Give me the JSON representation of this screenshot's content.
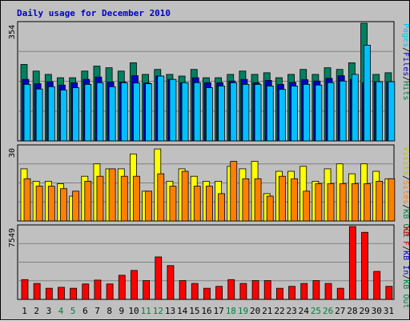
{
  "chart_data": [
    {
      "type": "bar",
      "title": "Daily usage for December 2010",
      "panel": "top",
      "ymax_label": "354",
      "right_axis_labels": [
        {
          "text": "Pages",
          "color": "#00c0ff"
        },
        {
          "text": "/",
          "color": "#000000"
        },
        {
          "text": "Files",
          "color": "#0000c0"
        },
        {
          "text": "/",
          "color": "#000000"
        },
        {
          "text": "Hits",
          "color": "#008040"
        }
      ],
      "categories": [
        "1",
        "2",
        "3",
        "4",
        "5",
        "6",
        "7",
        "8",
        "9",
        "10",
        "11",
        "12",
        "13",
        "14",
        "15",
        "16",
        "17",
        "18",
        "19",
        "20",
        "21",
        "22",
        "23",
        "24",
        "25",
        "26",
        "27",
        "28",
        "29",
        "30",
        "31"
      ],
      "weekend_days": [
        "4",
        "5",
        "11",
        "12",
        "18",
        "19",
        "25",
        "26"
      ],
      "ylim": [
        0,
        354
      ],
      "series": [
        {
          "name": "Hits",
          "color": "#008060",
          "values": [
            230,
            210,
            200,
            190,
            190,
            210,
            225,
            220,
            210,
            235,
            200,
            215,
            200,
            195,
            215,
            190,
            190,
            200,
            210,
            200,
            205,
            190,
            200,
            215,
            200,
            220,
            215,
            235,
            354,
            200,
            205
          ]
        },
        {
          "name": "Files",
          "color": "#0000c8",
          "values": [
            185,
            172,
            178,
            168,
            175,
            185,
            192,
            177,
            177,
            196,
            174,
            195,
            185,
            175,
            190,
            175,
            175,
            180,
            185,
            175,
            182,
            170,
            176,
            184,
            180,
            188,
            196,
            185,
            175,
            178,
            178
          ]
        },
        {
          "name": "Pages",
          "color": "#00c0ff",
          "values": [
            170,
            156,
            163,
            153,
            160,
            170,
            175,
            163,
            175,
            174,
            172,
            195,
            185,
            175,
            175,
            160,
            165,
            175,
            170,
            170,
            165,
            155,
            165,
            170,
            168,
            175,
            180,
            200,
            288,
            178,
            178
          ]
        }
      ]
    },
    {
      "type": "bar",
      "panel": "middle",
      "ymax_label": "30",
      "right_axis_labels": [
        {
          "text": "Visits",
          "color": "#c0c000"
        },
        {
          "text": "/",
          "color": "#000000"
        },
        {
          "text": "Sites",
          "color": "#ff8000"
        },
        {
          "text": "/",
          "color": "#000000"
        },
        {
          "text": "KB Out",
          "color": "#008040"
        }
      ],
      "categories": [
        "1",
        "2",
        "3",
        "4",
        "5",
        "6",
        "7",
        "8",
        "9",
        "10",
        "11",
        "12",
        "13",
        "14",
        "15",
        "16",
        "17",
        "18",
        "19",
        "20",
        "21",
        "22",
        "23",
        "24",
        "25",
        "26",
        "27",
        "28",
        "29",
        "30",
        "31"
      ],
      "ylim": [
        0,
        30
      ],
      "series": [
        {
          "name": "Visits",
          "color": "#ffff00",
          "values": [
            21,
            16,
            16,
            15,
            10,
            18,
            23,
            21,
            21,
            27,
            12,
            29,
            16,
            21,
            18,
            16,
            16,
            22,
            21,
            24,
            11,
            20,
            20,
            22,
            16,
            21,
            23,
            19,
            23,
            20,
            17
          ]
        },
        {
          "name": "Sites",
          "color": "#ff8000",
          "values": [
            17,
            14,
            14,
            13,
            12,
            16,
            18,
            21,
            18,
            18,
            12,
            19,
            14,
            20,
            14,
            14,
            11,
            24,
            17,
            17,
            10,
            18,
            17,
            12,
            15,
            15,
            15,
            15,
            15,
            16,
            17
          ]
        }
      ]
    },
    {
      "type": "bar",
      "panel": "bottom",
      "ymax_label": "7549",
      "right_axis_labels": [
        {
          "text": "KB F",
          "color": "#c00000"
        },
        {
          "text": "/",
          "color": "#000000"
        },
        {
          "text": "KB In",
          "color": "#0000c0"
        },
        {
          "text": "/",
          "color": "#000000"
        },
        {
          "text": "KB Out",
          "color": "#008040"
        }
      ],
      "categories": [
        "1",
        "2",
        "3",
        "4",
        "5",
        "6",
        "7",
        "8",
        "9",
        "10",
        "11",
        "12",
        "13",
        "14",
        "15",
        "16",
        "17",
        "18",
        "19",
        "20",
        "21",
        "22",
        "23",
        "24",
        "25",
        "26",
        "27",
        "28",
        "29",
        "30",
        "31"
      ],
      "ylim": [
        0,
        7549
      ],
      "series": [
        {
          "name": "KB F",
          "color": "#ff0000",
          "values": [
            2050,
            1650,
            1150,
            1250,
            1150,
            1600,
            2000,
            1600,
            2500,
            3000,
            1950,
            4400,
            3500,
            1950,
            1650,
            1150,
            1350,
            2050,
            1650,
            1950,
            1950,
            1150,
            1350,
            1650,
            1950,
            1650,
            1150,
            7549,
            6950,
            2900,
            1350
          ]
        }
      ]
    }
  ]
}
